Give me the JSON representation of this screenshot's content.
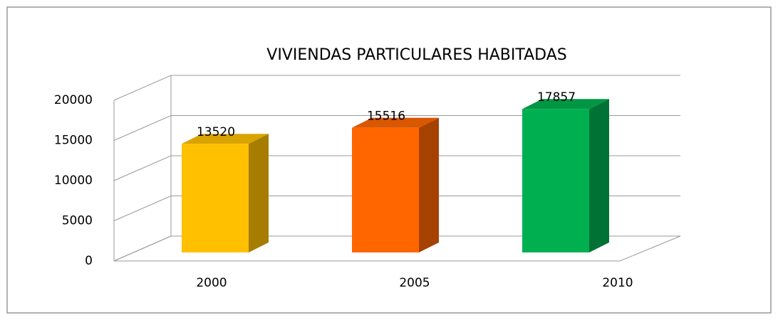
{
  "chart_data": {
    "type": "bar",
    "title": "VIVIENDAS PARTICULARES HABITADAS",
    "categories": [
      "2000",
      "2005",
      "2010"
    ],
    "values": [
      13520,
      15516,
      17857
    ],
    "colors": [
      "#ffc000",
      "#ff6600",
      "#00b050"
    ],
    "ylim": [
      0,
      20000
    ],
    "yticks": [
      0,
      5000,
      10000,
      15000,
      20000
    ],
    "grid": true
  }
}
